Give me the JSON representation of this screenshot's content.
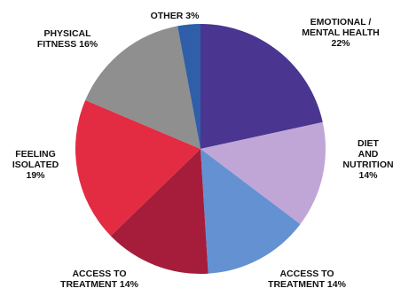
{
  "chart_data": {
    "type": "pie",
    "title": "",
    "start_angle_deg": 0,
    "direction": "clockwise",
    "slices": [
      {
        "label_lines": [
          "EMOTIONAL /",
          "MENTAL HEALTH",
          "22%"
        ],
        "category": "EMOTIONAL / MENTAL HEALTH",
        "value": 22,
        "color": "#4a3690"
      },
      {
        "label_lines": [
          "DIET",
          "AND",
          "NUTRITION",
          "14%"
        ],
        "category": "DIET AND NUTRITION",
        "value": 14,
        "color": "#c0a6d6"
      },
      {
        "label_lines": [
          "ACCESS TO",
          "TREATMENT 14%"
        ],
        "category": "ACCESS TO TREATMENT",
        "value": 14,
        "color": "#6391d2"
      },
      {
        "label_lines": [
          "ACCESS TO",
          "TREATMENT 14%"
        ],
        "category": "ACCESS TO TREATMENT",
        "value": 14,
        "color": "#a51d3a"
      },
      {
        "label_lines": [
          "FEELING",
          "ISOLATED",
          "19%"
        ],
        "category": "FEELING ISOLATED",
        "value": 19,
        "color": "#e32b42"
      },
      {
        "label_lines": [
          "PHYSICAL",
          "FITNESS 16%"
        ],
        "category": "PHYSICAL FITNESS",
        "value": 16,
        "color": "#8f8f8f"
      },
      {
        "label_lines": [
          "OTHER 3%"
        ],
        "category": "OTHER",
        "value": 3,
        "color": "#2f5fa8"
      }
    ]
  }
}
